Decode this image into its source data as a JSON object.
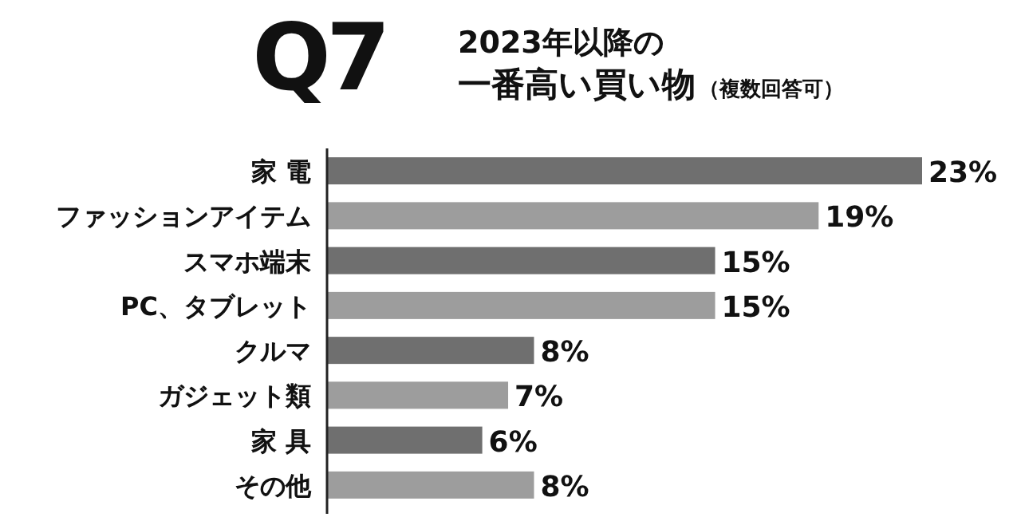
{
  "chart_data": {
    "type": "bar",
    "orientation": "horizontal",
    "title": "Q7",
    "subtitle": "2023年以降の",
    "annotations": [
      "一番高い買い物",
      "（複数回答可）"
    ],
    "categories": [
      "家 電",
      "ファッションアイテム",
      "スマホ端末",
      "PC、タブレット",
      "クルマ",
      "ガジェット類",
      "家 具",
      "その他"
    ],
    "values": [
      23,
      19,
      15,
      15,
      8,
      7,
      6,
      8
    ],
    "colors": [
      "#6f6f6f",
      "#9d9d9d",
      "#6f6f6f",
      "#9d9d9d",
      "#6f6f6f",
      "#9d9d9d",
      "#6f6f6f",
      "#9d9d9d"
    ],
    "value_labels": [
      "23%",
      "19%",
      "15%",
      "15%",
      "8%",
      "7%",
      "6%",
      "8%"
    ]
  }
}
